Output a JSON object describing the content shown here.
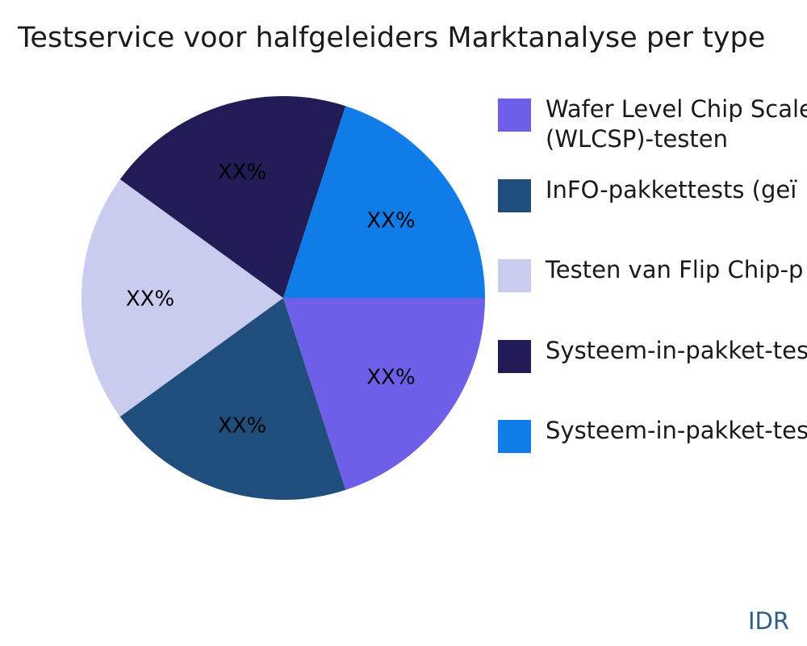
{
  "title": "Testservice voor halfgeleiders Marktanalyse per type",
  "watermark": "IDR",
  "colors": {
    "background": "#ffffff",
    "title_text": "#1b1b1b",
    "slice_label_text": "#000000",
    "legend_text": "#1a1a1a",
    "watermark_text": "#2E5E8E"
  },
  "chart_data": {
    "type": "pie",
    "title": "Testservice voor halfgeleiders Marktanalyse per type",
    "start_angle_deg": 0,
    "direction": "clockwise",
    "legend_position": "right",
    "slices": [
      {
        "legend_lines": [
          "Wafer Level Chip Scale",
          "(WLCSP)-testen"
        ],
        "value_label": "XX%",
        "percent": 20,
        "color": "#6D5FE8"
      },
      {
        "legend_lines": [
          "InFO-pakkettests (geï"
        ],
        "value_label": "XX%",
        "percent": 20,
        "color": "#204E7C"
      },
      {
        "legend_lines": [
          "Testen van Flip Chip-p"
        ],
        "value_label": "XX%",
        "percent": 20,
        "color": "#C9CBEF"
      },
      {
        "legend_lines": [
          "Systeem-in-pakket-tes"
        ],
        "value_label": "XX%",
        "percent": 20,
        "color": "#211C55"
      },
      {
        "legend_lines": [
          "Systeem-in-pakket-tes"
        ],
        "value_label": "XX%",
        "percent": 20,
        "color": "#0F7CE8"
      }
    ]
  }
}
